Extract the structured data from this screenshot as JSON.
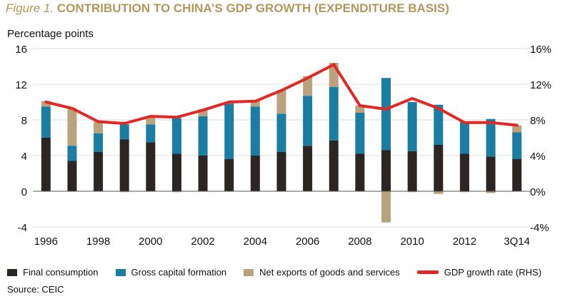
{
  "header": {
    "figure_label": "Figure 1.",
    "title": "CONTRIBUTION TO CHINA’S GDP GROWTH (EXPENDITURE BASIS)"
  },
  "source": "Source: CEIC",
  "colors": {
    "final_consumption": "#2b2623",
    "gross_capital_formation": "#1c7da3",
    "net_exports": "#b9a27d",
    "gdp_growth": "#e02926",
    "title": "#b5965a"
  },
  "chart_data": {
    "type": "bar",
    "stacked": true,
    "ylabel": "Percentage points",
    "ylim": [
      -4,
      16
    ],
    "yticks": [
      -4,
      0,
      4,
      8,
      12,
      16
    ],
    "y2label": "",
    "y2lim": [
      -4,
      16
    ],
    "y2ticks": [
      "-4%",
      "0%",
      "4%",
      "8%",
      "12%",
      "16%"
    ],
    "categories": [
      "1996",
      "1997",
      "1998",
      "1999",
      "2000",
      "2001",
      "2002",
      "2003",
      "2004",
      "2005",
      "2006",
      "2007",
      "2008",
      "2009",
      "2010",
      "2011",
      "2012",
      "2013",
      "3Q14"
    ],
    "xtick_labels": [
      "1996",
      "",
      "1998",
      "",
      "2000",
      "",
      "2002",
      "",
      "2004",
      "",
      "2006",
      "",
      "2008",
      "",
      "2010",
      "",
      "2012",
      "",
      "3Q14"
    ],
    "grid": true,
    "legend_position": "bottom",
    "series": [
      {
        "name": "Final consumption",
        "kind": "bar",
        "values": [
          6.0,
          3.4,
          4.4,
          5.8,
          5.5,
          4.2,
          4.0,
          3.6,
          4.0,
          4.4,
          5.1,
          5.7,
          4.2,
          4.6,
          4.5,
          5.2,
          4.2,
          3.9,
          3.6
        ]
      },
      {
        "name": "Gross capital formation",
        "kind": "bar",
        "values": [
          3.5,
          1.7,
          2.1,
          1.7,
          2.0,
          4.0,
          4.4,
          6.2,
          5.5,
          4.3,
          5.6,
          6.0,
          4.6,
          8.1,
          5.5,
          4.5,
          3.6,
          4.2,
          3.0
        ]
      },
      {
        "name": "Net exports of goods and services",
        "kind": "bar",
        "values": [
          0.6,
          4.2,
          1.3,
          -0.1,
          0.8,
          -0.1,
          0.8,
          0.1,
          0.6,
          2.6,
          2.2,
          2.7,
          0.8,
          -3.5,
          -0.1,
          -0.3,
          -0.1,
          -0.2,
          0.8
        ]
      },
      {
        "name": "GDP growth rate (RHS)",
        "kind": "line",
        "axis": "right",
        "values": [
          10.0,
          9.3,
          7.8,
          7.6,
          8.4,
          8.3,
          9.1,
          10.0,
          10.1,
          11.3,
          12.7,
          14.2,
          9.6,
          9.2,
          10.4,
          9.3,
          7.7,
          7.7,
          7.4
        ]
      }
    ]
  }
}
